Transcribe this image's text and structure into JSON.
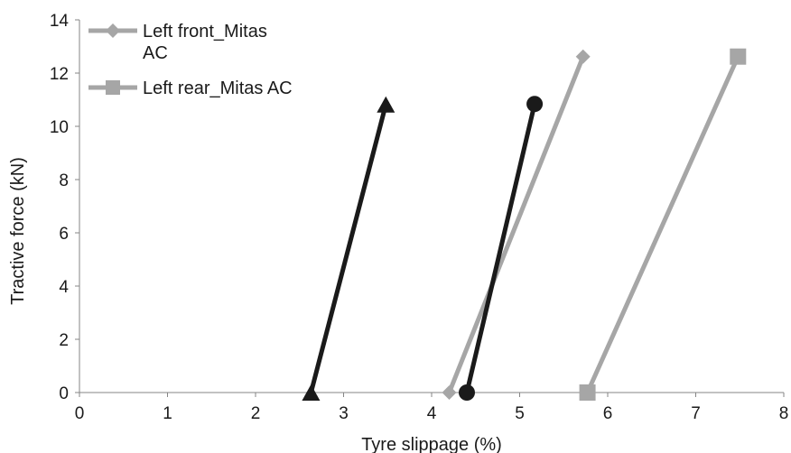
{
  "chart_data": {
    "type": "line",
    "title": "",
    "xlabel": "Tyre slippage (%)",
    "ylabel": "Tractive force (kN)",
    "xlim": [
      0,
      8
    ],
    "ylim": [
      0,
      14
    ],
    "xticks": [
      0,
      1,
      2,
      3,
      4,
      5,
      6,
      7,
      8
    ],
    "yticks": [
      0,
      2,
      4,
      6,
      8,
      10,
      12,
      14
    ],
    "grid": false,
    "legend_position": "top-left",
    "series": [
      {
        "name": "Left front_Mitas AC",
        "marker": "diamond",
        "color": "#a6a6a6",
        "in_legend": true,
        "points": [
          {
            "x": 4.2,
            "y": 0
          },
          {
            "x": 5.72,
            "y": 12.62
          }
        ]
      },
      {
        "name": "Left rear_Mitas AC",
        "marker": "square",
        "color": "#a6a6a6",
        "in_legend": true,
        "points": [
          {
            "x": 5.77,
            "y": 0
          },
          {
            "x": 7.48,
            "y": 12.62
          }
        ]
      },
      {
        "marker": "triangle",
        "color": "#1a1a1a",
        "in_legend": false,
        "points": [
          {
            "x": 2.63,
            "y": 0
          },
          {
            "x": 3.48,
            "y": 10.82
          }
        ]
      },
      {
        "marker": "circle",
        "color": "#1a1a1a",
        "in_legend": false,
        "points": [
          {
            "x": 4.4,
            "y": 0
          },
          {
            "x": 5.17,
            "y": 10.84
          }
        ]
      }
    ],
    "legend": {
      "front_line1": "Left front_Mitas",
      "front_line2": "AC",
      "rear": "Left rear_Mitas AC"
    }
  }
}
